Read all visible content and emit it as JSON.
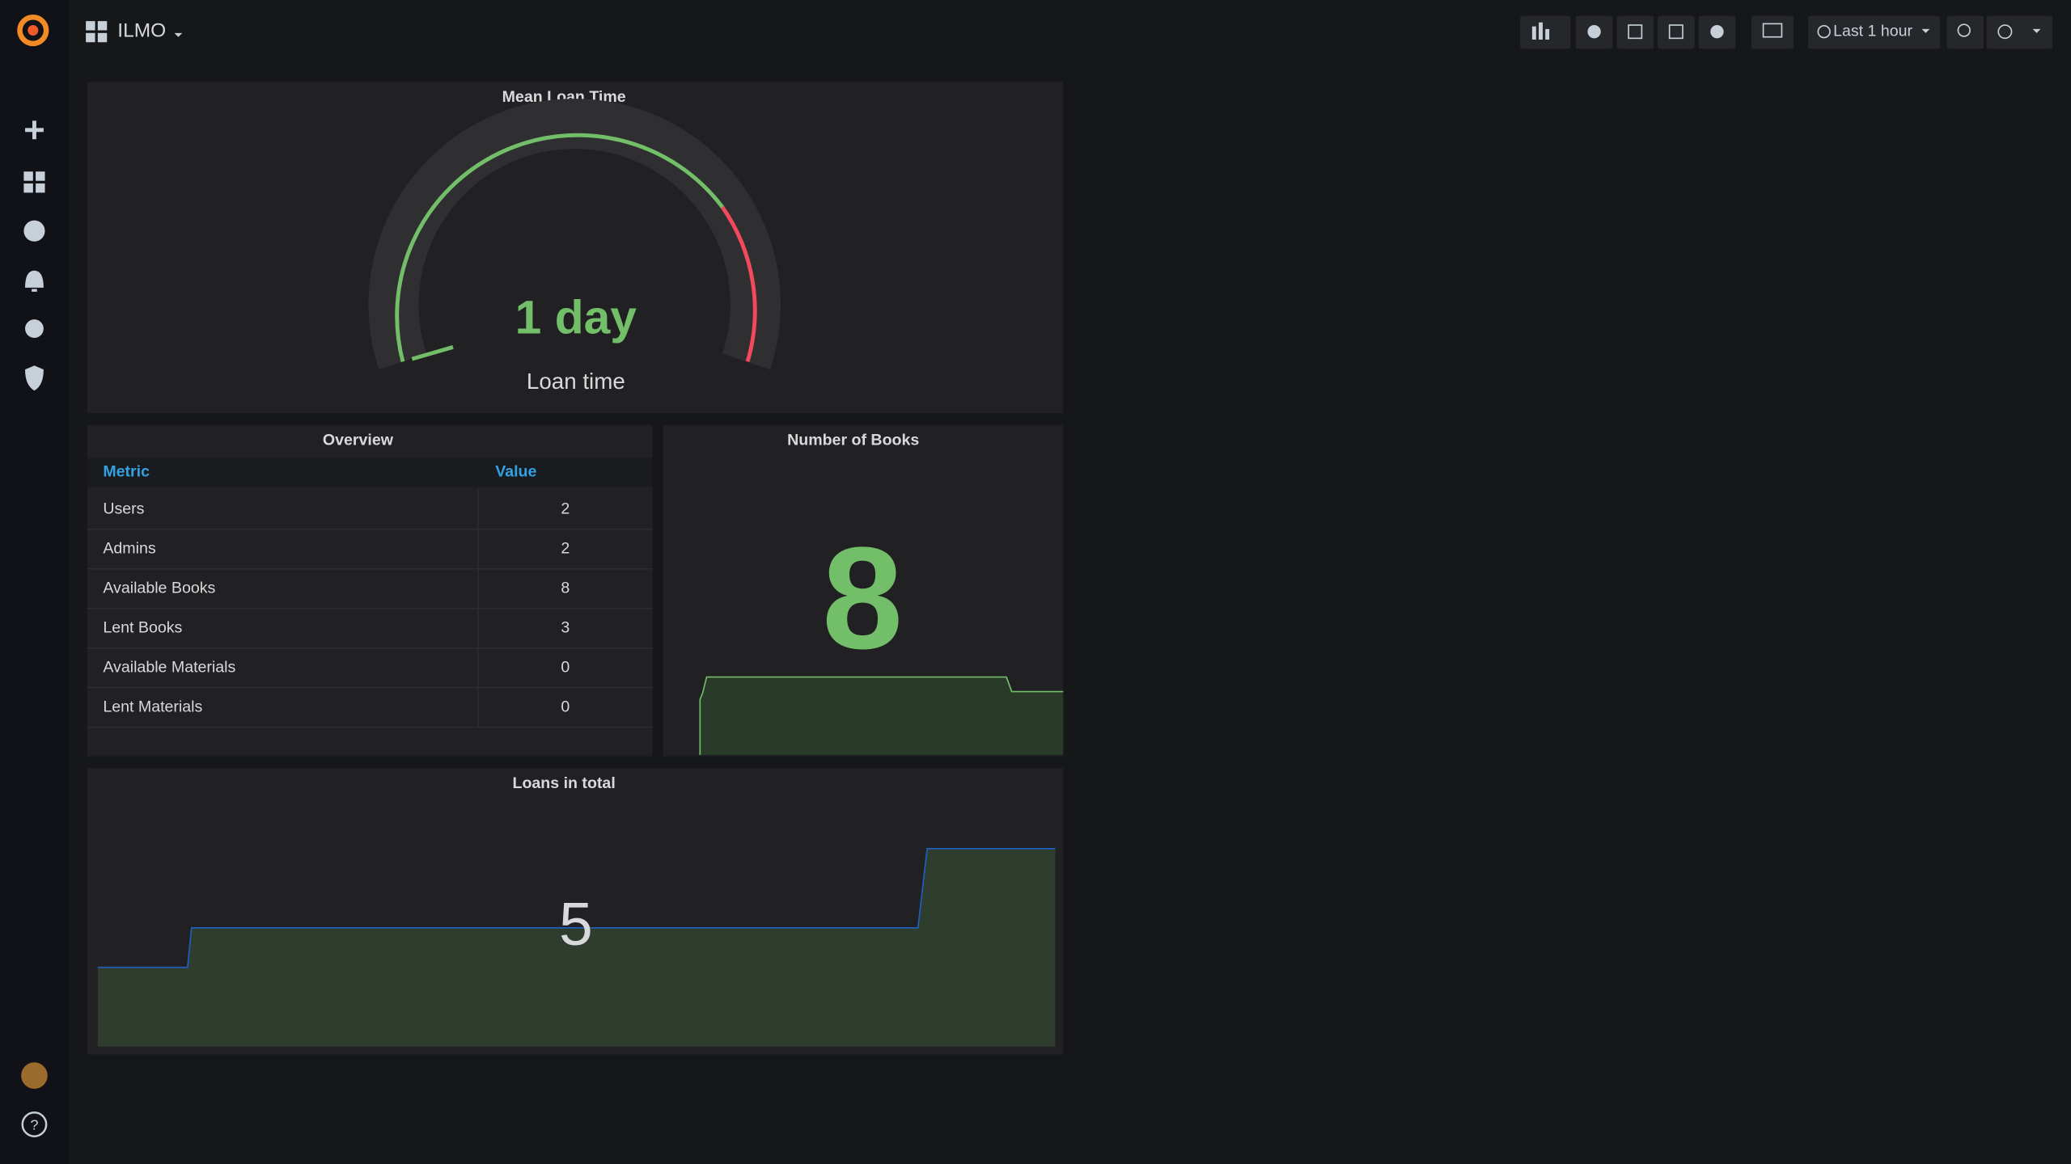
{
  "header": {
    "title": "ILMO",
    "time_range": "Last 1 hour"
  },
  "gauge_panel": {
    "title": "Mean Loan Time",
    "value": "1 day",
    "label": "Loan time"
  },
  "table": {
    "title": "Overview",
    "columns": [
      "Metric",
      "Value"
    ],
    "rows": [
      [
        "Users",
        2
      ],
      [
        "Admins",
        2
      ],
      [
        "Available Books",
        8
      ],
      [
        "Lent Books",
        3
      ],
      [
        "Available Materials",
        0
      ],
      [
        "Lent Materials",
        0
      ]
    ]
  },
  "books_panel": {
    "title": "Number of Books",
    "value": 8
  },
  "loans_panel": {
    "title": "Loans in total",
    "value": 5
  }
}
